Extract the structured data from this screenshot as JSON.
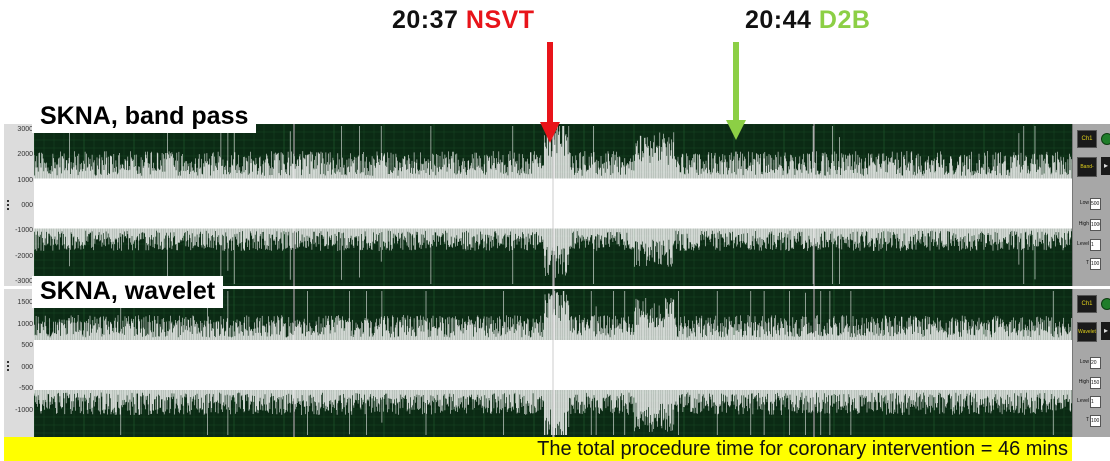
{
  "markers": [
    {
      "time": "20:37",
      "event": "NSVT",
      "color": "#e8141a"
    },
    {
      "time": "20:44",
      "event": "D2B",
      "color": "#8ccf45"
    }
  ],
  "panels": [
    {
      "title": "SKNA, band pass",
      "y_ticks": [
        "3000",
        "2000",
        "1000",
        "000",
        "-1000",
        "-2000",
        "-3000"
      ],
      "channel": "Ch1",
      "mode": "Band-pass",
      "fields": [
        {
          "label": "Low",
          "value": "500"
        },
        {
          "label": "High",
          "value": "1000"
        },
        {
          "label": "Level",
          "value": "1"
        },
        {
          "label": "T",
          "value": "100"
        }
      ]
    },
    {
      "title": "SKNA, wavelet",
      "y_ticks": [
        "1500",
        "1000",
        "500",
        "000",
        "-500",
        "-1000"
      ],
      "channel": "Ch1",
      "mode": "Wavelet",
      "fields": [
        {
          "label": "Low",
          "value": "20"
        },
        {
          "label": "High",
          "value": "150"
        },
        {
          "label": "Level",
          "value": "1"
        },
        {
          "label": "T",
          "value": "100"
        }
      ]
    }
  ],
  "footer": {
    "text": "The total procedure time for coronary intervention = 46 mins"
  },
  "colors": {
    "plot_background": "#0b2a14",
    "trace": "#ffffff",
    "grid": "#1e5a2c",
    "footer": "#ffff00"
  }
}
